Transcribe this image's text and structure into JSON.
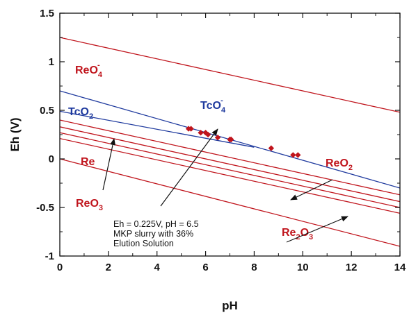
{
  "chart_data": {
    "type": "line",
    "xlabel": "pH",
    "ylabel": "Eh (V)",
    "xlim": [
      0,
      14
    ],
    "ylim": [
      -1,
      1.5
    ],
    "x_ticks": [
      0,
      2,
      4,
      6,
      8,
      10,
      12,
      14
    ],
    "x_tick_labels": [
      "0",
      "2",
      "4",
      "6",
      "8",
      "10",
      "12",
      "14"
    ],
    "y_ticks": [
      -1,
      -0.5,
      0,
      0.5,
      1,
      1.5
    ],
    "y_tick_labels": [
      "-1",
      "-0.5",
      "0",
      "0.5",
      "1",
      "1.5"
    ],
    "grid": false,
    "colors": {
      "rhenium": "#c0141c",
      "technetium": "#1f3a9e",
      "points": "#c0141c"
    },
    "rhenium_boundaries": [
      {
        "x": [
          0,
          14
        ],
        "y": [
          1.25,
          0.48
        ]
      },
      {
        "x": [
          0,
          14
        ],
        "y": [
          0.4,
          -0.37
        ]
      },
      {
        "x": [
          0,
          14
        ],
        "y": [
          0.33,
          -0.44
        ]
      },
      {
        "x": [
          0,
          14
        ],
        "y": [
          0.27,
          -0.5
        ]
      },
      {
        "x": [
          0,
          14
        ],
        "y": [
          0.21,
          -0.56
        ]
      },
      {
        "x": [
          0,
          14
        ],
        "y": [
          0.0,
          -0.9
        ]
      }
    ],
    "technetium_boundaries": [
      {
        "x": [
          0,
          14
        ],
        "y": [
          0.7,
          -0.3
        ]
      },
      {
        "x": [
          0,
          8
        ],
        "y": [
          0.49,
          0.12
        ]
      }
    ],
    "measurements": {
      "x": [
        5.3,
        5.4,
        5.8,
        6.0,
        6.1,
        6.5,
        7.0,
        7.05,
        8.7,
        9.6,
        9.8
      ],
      "y": [
        0.31,
        0.31,
        0.27,
        0.27,
        0.25,
        0.22,
        0.2,
        0.2,
        0.11,
        0.04,
        0.04
      ]
    },
    "labels": [
      {
        "text": "ReO",
        "sub": "4",
        "sup": "-",
        "color": "rhenium"
      },
      {
        "text": "TcO",
        "sub": "4",
        "sup": "-",
        "color": "technetium"
      },
      {
        "text": "TcO",
        "sub": "2",
        "sup": "",
        "color": "technetium"
      },
      {
        "text": "Re",
        "sub": "",
        "sup": "",
        "color": "rhenium"
      },
      {
        "text": "ReO",
        "sub": "3",
        "sup": "",
        "color": "rhenium"
      },
      {
        "text": "ReO",
        "sub": "2",
        "sup": "",
        "color": "rhenium"
      },
      {
        "text": "Re",
        "sub": "2",
        "mid": "O",
        "sub2": "3",
        "color": "rhenium"
      }
    ],
    "annotation": {
      "lines": [
        "Eh = 0.225V, pH = 6.5",
        "MKP slurry with 36%",
        "Elution Solution"
      ]
    }
  }
}
